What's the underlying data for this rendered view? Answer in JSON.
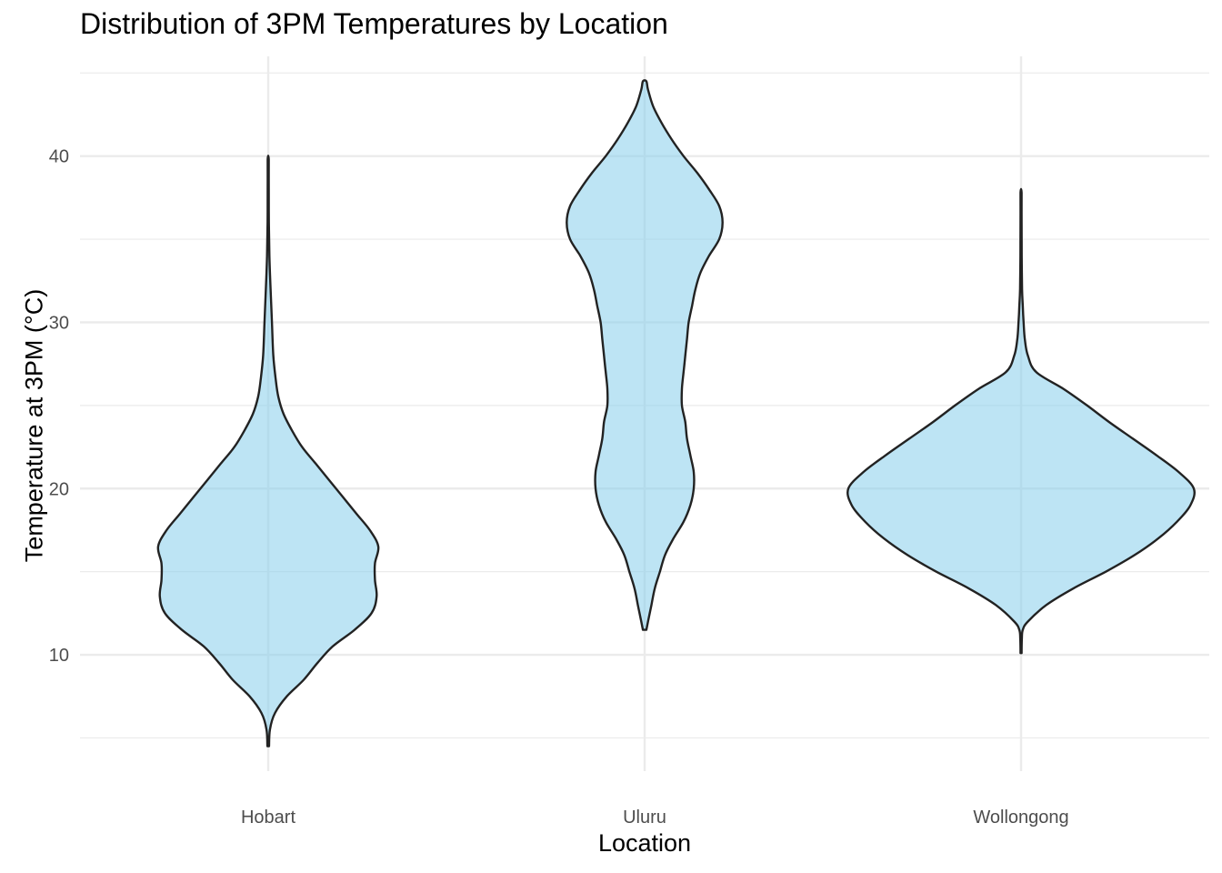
{
  "chart_data": {
    "type": "violin",
    "title": "Distribution of 3PM Temperatures by Location",
    "xlabel": "Location",
    "ylabel": "Temperature at 3PM (°C)",
    "ylim": [
      3,
      46
    ],
    "yticks": [
      10,
      20,
      30,
      40
    ],
    "y_minor_gridlines": [
      5,
      15,
      25,
      35,
      45
    ],
    "categories": [
      "Hobart",
      "Uluru",
      "Wollongong"
    ],
    "fill_color": "#87CEEB",
    "fill_opacity": 0.55,
    "outline_color": "#222222",
    "grid_color": "#EBEBEB",
    "max_half_width_units": 1.0,
    "violins": [
      {
        "name": "Hobart",
        "min": 4.5,
        "max": 39.8,
        "profile": [
          [
            4.5,
            0.005
          ],
          [
            5.5,
            0.01
          ],
          [
            6.5,
            0.04
          ],
          [
            7.5,
            0.11
          ],
          [
            8.5,
            0.21
          ],
          [
            9.5,
            0.29
          ],
          [
            10.5,
            0.38
          ],
          [
            11.5,
            0.51
          ],
          [
            12.5,
            0.61
          ],
          [
            13.5,
            0.64
          ],
          [
            14.5,
            0.63
          ],
          [
            15.5,
            0.63
          ],
          [
            16.5,
            0.65
          ],
          [
            17.5,
            0.6
          ],
          [
            18.5,
            0.52
          ],
          [
            19.5,
            0.44
          ],
          [
            20.5,
            0.36
          ],
          [
            21.5,
            0.28
          ],
          [
            22.5,
            0.2
          ],
          [
            23.5,
            0.14
          ],
          [
            24.5,
            0.09
          ],
          [
            25.5,
            0.06
          ],
          [
            26.5,
            0.045
          ],
          [
            28,
            0.03
          ],
          [
            30,
            0.022
          ],
          [
            32,
            0.014
          ],
          [
            34,
            0.007
          ],
          [
            36,
            0.004
          ],
          [
            38,
            0.003
          ],
          [
            39.8,
            0.003
          ]
        ]
      },
      {
        "name": "Uluru",
        "min": 11.5,
        "max": 44.5,
        "profile": [
          [
            11.5,
            0.01
          ],
          [
            12,
            0.02
          ],
          [
            13,
            0.04
          ],
          [
            14,
            0.06
          ],
          [
            15,
            0.09
          ],
          [
            16,
            0.12
          ],
          [
            17,
            0.17
          ],
          [
            18,
            0.23
          ],
          [
            19,
            0.27
          ],
          [
            20,
            0.29
          ],
          [
            21,
            0.29
          ],
          [
            22,
            0.27
          ],
          [
            23,
            0.25
          ],
          [
            24,
            0.24
          ],
          [
            25,
            0.22
          ],
          [
            26,
            0.22
          ],
          [
            27,
            0.23
          ],
          [
            28,
            0.24
          ],
          [
            29,
            0.25
          ],
          [
            30,
            0.26
          ],
          [
            31,
            0.28
          ],
          [
            32,
            0.3
          ],
          [
            33,
            0.33
          ],
          [
            34,
            0.38
          ],
          [
            35,
            0.44
          ],
          [
            36,
            0.46
          ],
          [
            37,
            0.44
          ],
          [
            38,
            0.38
          ],
          [
            39,
            0.31
          ],
          [
            40,
            0.23
          ],
          [
            41,
            0.16
          ],
          [
            42,
            0.1
          ],
          [
            43,
            0.05
          ],
          [
            44,
            0.02
          ],
          [
            44.5,
            0.01
          ]
        ]
      },
      {
        "name": "Wollongong",
        "min": 10.1,
        "max": 37.8,
        "profile": [
          [
            10.1,
            0.003
          ],
          [
            11,
            0.005
          ],
          [
            11.5,
            0.01
          ],
          [
            12,
            0.04
          ],
          [
            13,
            0.15
          ],
          [
            14,
            0.31
          ],
          [
            15,
            0.5
          ],
          [
            16,
            0.67
          ],
          [
            17,
            0.81
          ],
          [
            18,
            0.92
          ],
          [
            19,
            1.0
          ],
          [
            20,
            1.02
          ],
          [
            21,
            0.93
          ],
          [
            22,
            0.8
          ],
          [
            23,
            0.66
          ],
          [
            24,
            0.52
          ],
          [
            25,
            0.39
          ],
          [
            26,
            0.25
          ],
          [
            27,
            0.09
          ],
          [
            28,
            0.04
          ],
          [
            29,
            0.022
          ],
          [
            30,
            0.015
          ],
          [
            31,
            0.01
          ],
          [
            32,
            0.006
          ],
          [
            34,
            0.004
          ],
          [
            36,
            0.003
          ],
          [
            37.8,
            0.003
          ]
        ]
      }
    ]
  }
}
